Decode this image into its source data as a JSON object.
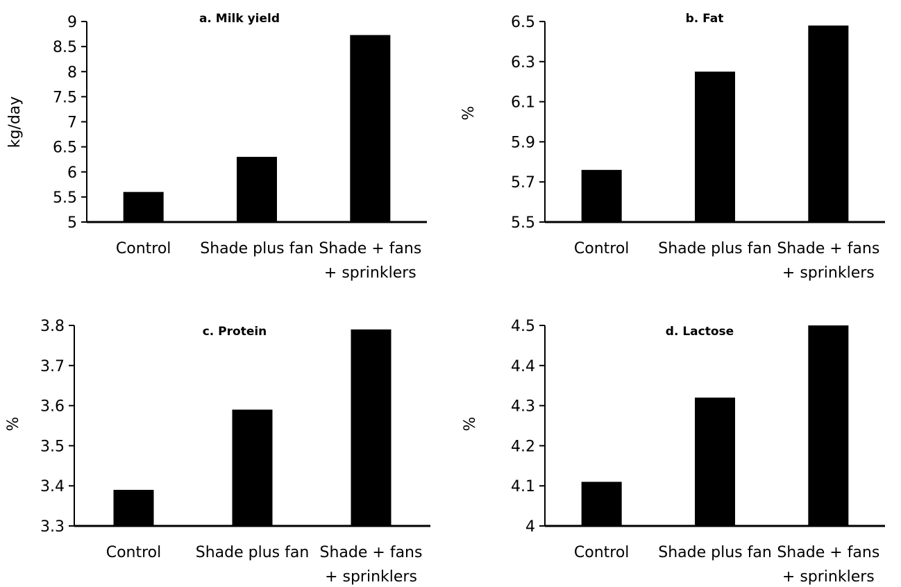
{
  "chart_data": [
    {
      "type": "bar",
      "title": "a. Milk yield",
      "ylabel": "kg/day",
      "xlabel": "",
      "categories": [
        [
          "Control"
        ],
        [
          "Shade plus fan"
        ],
        [
          "Shade + fans",
          "+ sprinklers"
        ]
      ],
      "values": [
        5.6,
        6.3,
        8.73
      ],
      "ylim": [
        5,
        9
      ],
      "yticks": [
        "5",
        "5.5",
        "6",
        "6.5",
        "7",
        "7.5",
        "8",
        "8.5",
        "9"
      ],
      "bar_color": "#000000",
      "grid": false
    },
    {
      "type": "bar",
      "title": "b. Fat",
      "ylabel": "%",
      "xlabel": "",
      "categories": [
        [
          "Control"
        ],
        [
          "Shade plus fan"
        ],
        [
          "Shade + fans",
          "+ sprinklers"
        ]
      ],
      "values": [
        5.76,
        6.25,
        6.48
      ],
      "ylim": [
        5.5,
        6.5
      ],
      "yticks": [
        "5.5",
        "5.7",
        "5.9",
        "6.1",
        "6.3",
        "6.5"
      ],
      "bar_color": "#000000",
      "grid": false
    },
    {
      "type": "bar",
      "title": "c. Protein",
      "ylabel": "%",
      "xlabel": "",
      "categories": [
        [
          "Control"
        ],
        [
          "Shade plus fan"
        ],
        [
          "Shade + fans",
          "+ sprinklers"
        ]
      ],
      "values": [
        3.39,
        3.59,
        3.79
      ],
      "ylim": [
        3.3,
        3.8
      ],
      "yticks": [
        "3.3",
        "3.4",
        "3.5",
        "3.6",
        "3.7",
        "3.8"
      ],
      "bar_color": "#000000",
      "grid": false
    },
    {
      "type": "bar",
      "title": "d. Lactose",
      "ylabel": "%",
      "xlabel": "",
      "categories": [
        [
          "Control"
        ],
        [
          "Shade plus fan"
        ],
        [
          "Shade + fans",
          "+ sprinklers"
        ]
      ],
      "values": [
        4.11,
        4.32,
        4.5
      ],
      "ylim": [
        4,
        4.5
      ],
      "yticks": [
        "4",
        "4.1",
        "4.2",
        "4.3",
        "4.4",
        "4.5"
      ],
      "bar_color": "#000000",
      "grid": false
    }
  ]
}
